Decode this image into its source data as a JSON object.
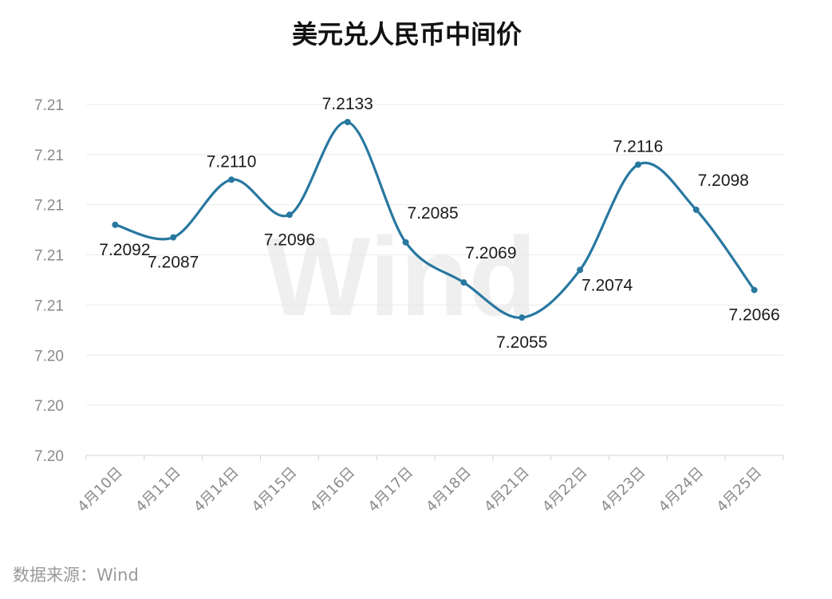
{
  "chart_data": {
    "type": "line",
    "title": "美元兑人民币中间价",
    "categories": [
      "4月10日",
      "4月11日",
      "4月14日",
      "4月15日",
      "4月16日",
      "4月17日",
      "4月18日",
      "4月21日",
      "4月22日",
      "4月23日",
      "4月24日",
      "4月25日"
    ],
    "series": [
      {
        "values": [
          7.2092,
          7.2087,
          7.211,
          7.2096,
          7.2133,
          7.2085,
          7.2069,
          7.2055,
          7.2074,
          7.2116,
          7.2098,
          7.2066
        ],
        "data_labels": [
          "7.2092",
          "7.2087",
          "7.2110",
          "7.2096",
          "7.2133",
          "7.2085",
          "7.2069",
          "7.2055",
          "7.2074",
          "7.2116",
          "7.2098",
          "7.2066"
        ],
        "color": "#2878a0",
        "smooth": true
      }
    ],
    "y_ticks": [
      {
        "value": 7.2,
        "label": "7.20"
      },
      {
        "value": 7.202,
        "label": "7.20"
      },
      {
        "value": 7.204,
        "label": "7.20"
      },
      {
        "value": 7.206,
        "label": "7.21"
      },
      {
        "value": 7.208,
        "label": "7.21"
      },
      {
        "value": 7.21,
        "label": "7.21"
      },
      {
        "value": 7.212,
        "label": "7.21"
      },
      {
        "value": 7.214,
        "label": "7.21"
      }
    ],
    "ylim": [
      7.2,
      7.214
    ],
    "grid": true,
    "legend": "none"
  },
  "source": "数据来源：Wind",
  "watermark": "Wind"
}
